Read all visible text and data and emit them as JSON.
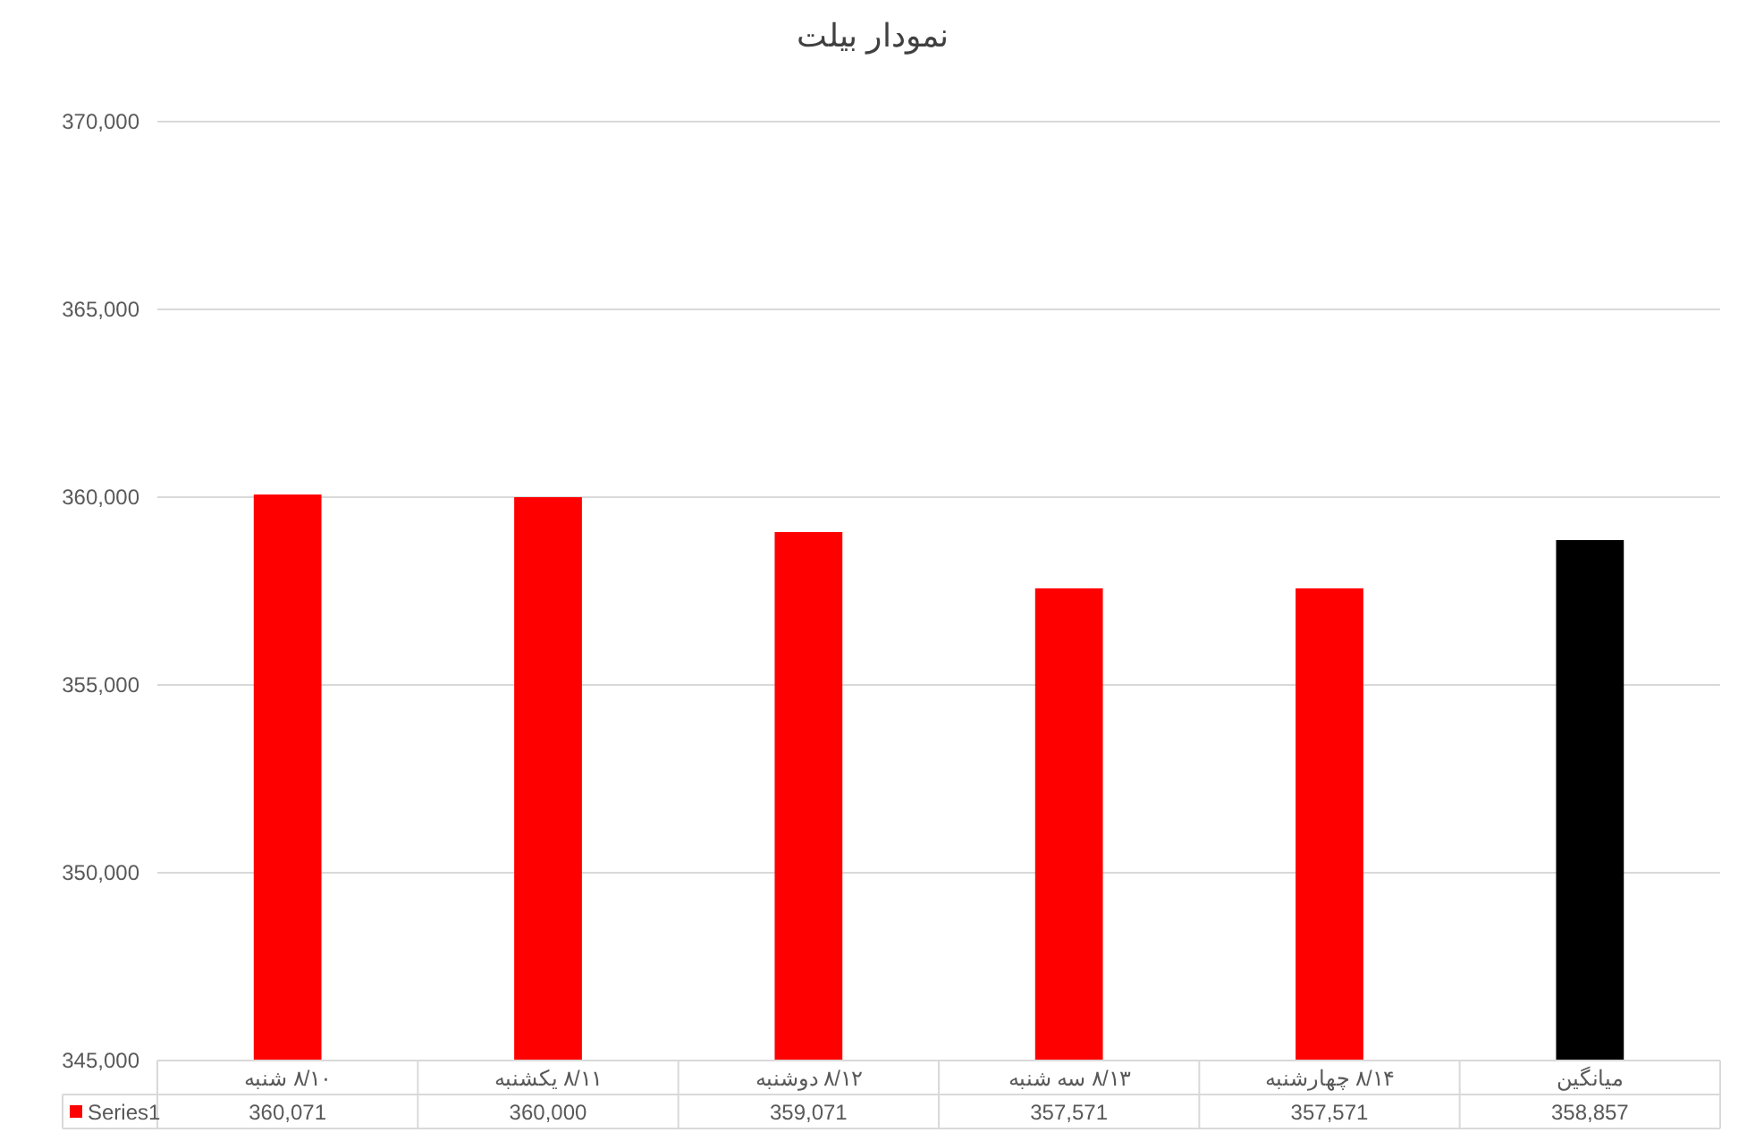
{
  "chart_data": {
    "type": "bar",
    "title": "نمودار بیلت",
    "categories": [
      "۸/۱۰ شنبه",
      "۸/۱۱ یکشنبه",
      "۸/۱۲ دوشنبه",
      "۸/۱۳ سه شنبه",
      "۸/۱۴ چهارشنبه",
      "میانگین"
    ],
    "series": [
      {
        "name": "Series1",
        "color": "#ff0000",
        "colors": [
          "#ff0000",
          "#ff0000",
          "#ff0000",
          "#ff0000",
          "#ff0000",
          "#000000"
        ],
        "values": [
          360071,
          360000,
          359071,
          357571,
          357571,
          358857
        ],
        "value_labels": [
          "360,071",
          "360,000",
          "359,071",
          "357,571",
          "357,571",
          "358,857"
        ]
      }
    ],
    "ylim": [
      345000,
      370000
    ],
    "yticks": [
      {
        "value": 345000,
        "label": "345,000"
      },
      {
        "value": 350000,
        "label": "350,000"
      },
      {
        "value": 355000,
        "label": "355,000"
      },
      {
        "value": 360000,
        "label": "360,000"
      },
      {
        "value": 365000,
        "label": "365,000"
      },
      {
        "value": 370000,
        "label": "370,000"
      }
    ],
    "grid": "y",
    "legend": "bottom"
  }
}
